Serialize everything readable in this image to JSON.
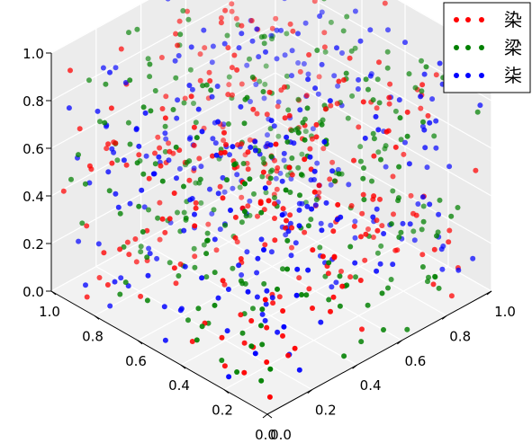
{
  "chart_data": {
    "type": "scatter",
    "projection": "3d",
    "title": "",
    "xlabel": "",
    "ylabel": "",
    "zlabel": "",
    "xlim": [
      0,
      1
    ],
    "ylim": [
      0,
      1
    ],
    "zlim": [
      0,
      1
    ],
    "grid": true,
    "legend_position": "top-right",
    "x_ticks": [
      "0.0",
      "0.2",
      "0.4",
      "0.6",
      "0.8",
      "1.0"
    ],
    "y_ticks": [
      "0.0",
      "0.2",
      "0.4",
      "0.6",
      "0.8",
      "1.0"
    ],
    "z_ticks": [
      "0.0",
      "0.2",
      "0.4",
      "0.6",
      "0.8",
      "1.0"
    ],
    "series": [
      {
        "name": "染",
        "color": "#ff0000",
        "points_per_series": 300,
        "distribution": "random within unit cube"
      },
      {
        "name": "梁",
        "color": "#008000",
        "points_per_series": 300,
        "distribution": "random within unit cube"
      },
      {
        "name": "柒",
        "color": "#0000ff",
        "points_per_series": 300,
        "distribution": "random within unit cube"
      }
    ]
  }
}
